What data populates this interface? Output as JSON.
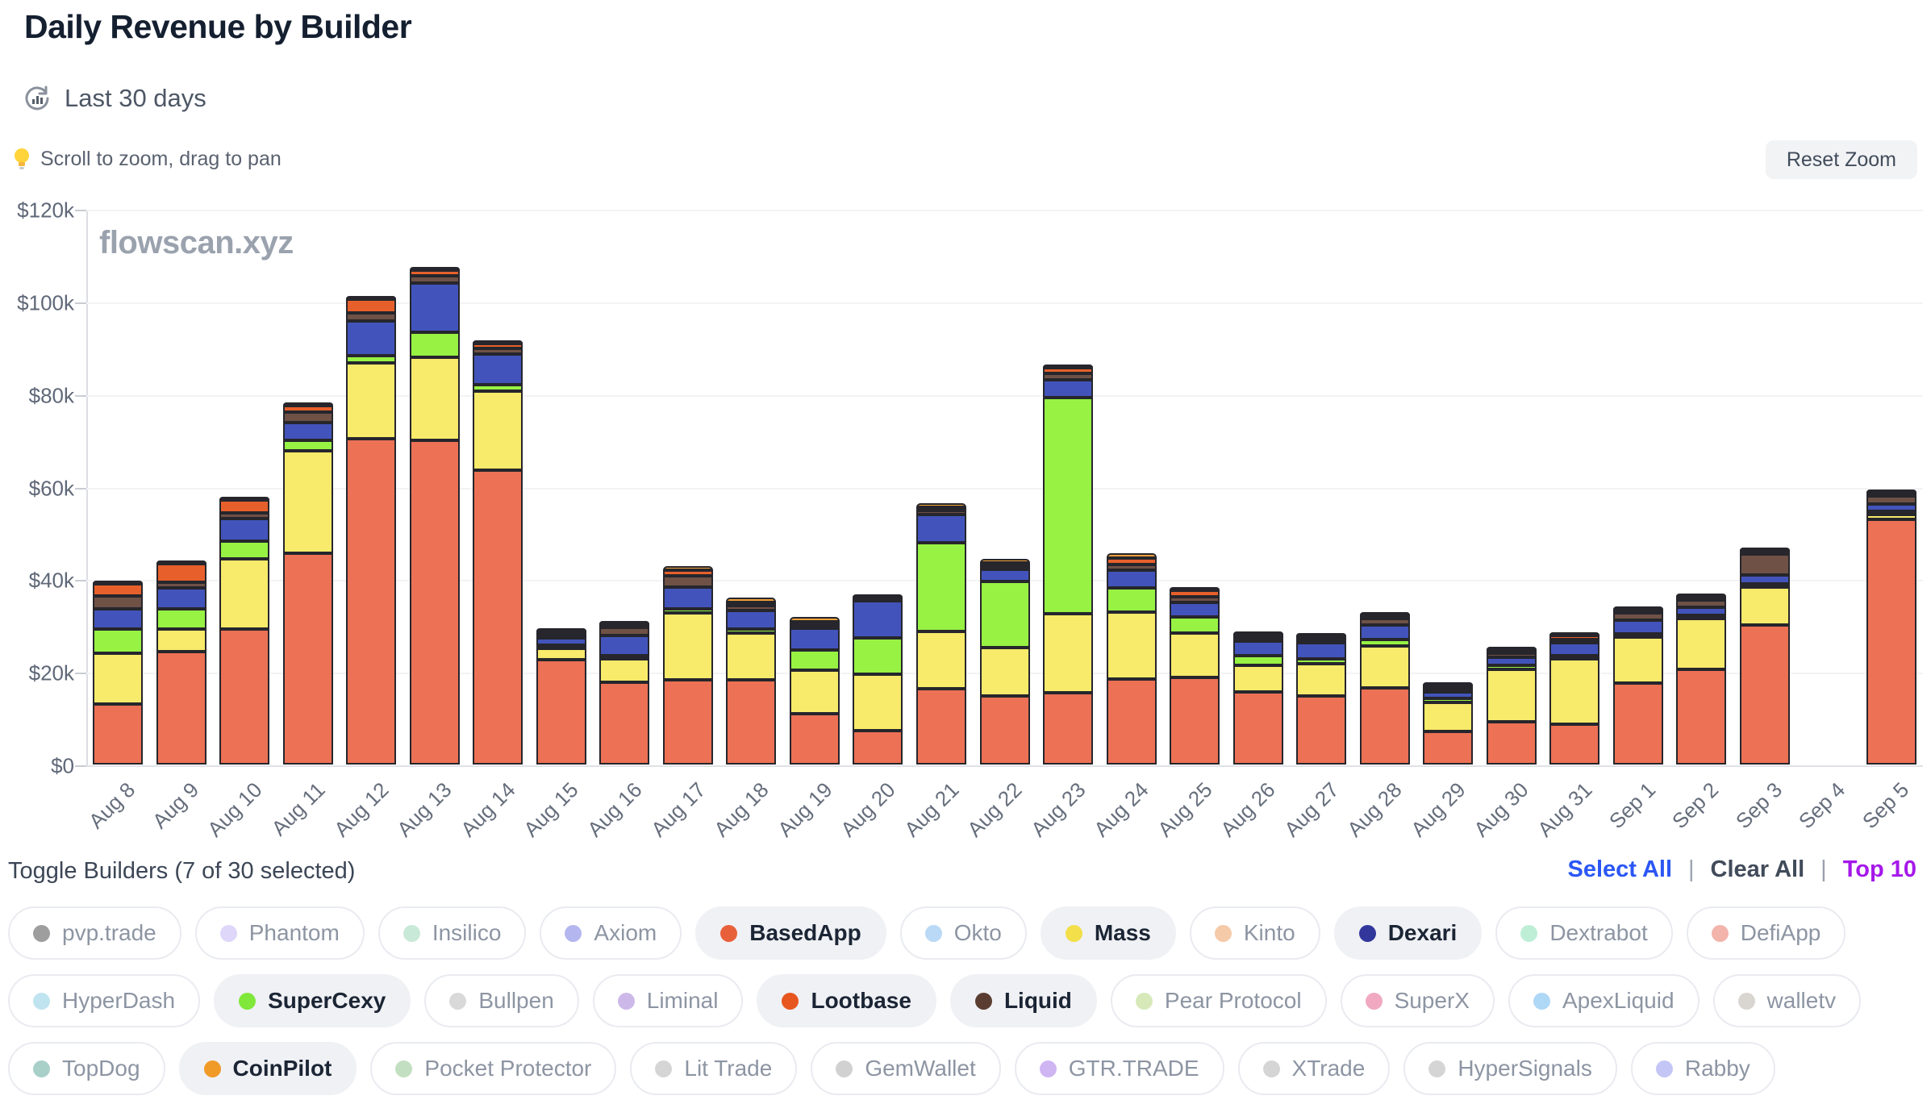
{
  "header": {
    "title": "Daily Revenue by Builder",
    "range_label": "Last 30 days",
    "tip": "Scroll to zoom, drag to pan",
    "reset_zoom_label": "Reset Zoom"
  },
  "watermark": "flowscan.xyz",
  "chart_data": {
    "type": "bar",
    "stacked": true,
    "title": "Daily Revenue by Builder",
    "xlabel": "",
    "ylabel": "",
    "ylim": [
      0,
      120000
    ],
    "grid": true,
    "legend_position": "none",
    "yticks": [
      {
        "value": 0,
        "label": "$0"
      },
      {
        "value": 20000,
        "label": "$20k"
      },
      {
        "value": 40000,
        "label": "$40k"
      },
      {
        "value": 60000,
        "label": "$60k"
      },
      {
        "value": 80000,
        "label": "$80k"
      },
      {
        "value": 100000,
        "label": "$100k"
      },
      {
        "value": 120000,
        "label": "$120k"
      }
    ],
    "categories": [
      "Aug 8",
      "Aug 9",
      "Aug 10",
      "Aug 11",
      "Aug 12",
      "Aug 13",
      "Aug 14",
      "Aug 15",
      "Aug 16",
      "Aug 17",
      "Aug 18",
      "Aug 19",
      "Aug 20",
      "Aug 21",
      "Aug 22",
      "Aug 23",
      "Aug 24",
      "Aug 25",
      "Aug 26",
      "Aug 27",
      "Aug 28",
      "Aug 29",
      "Aug 30",
      "Aug 31",
      "Sep 1",
      "Sep 2",
      "Sep 3",
      "Sep 4",
      "Sep 5"
    ],
    "series": [
      {
        "name": "BasedApp",
        "color": "#ec7155",
        "values": [
          13000,
          24400,
          29300,
          45700,
          70300,
          70000,
          63500,
          22700,
          17800,
          18300,
          18300,
          11000,
          7300,
          16300,
          14800,
          15500,
          18500,
          18800,
          15700,
          14800,
          16600,
          7200,
          9200,
          8700,
          17600,
          20500,
          30200,
          0,
          53000
        ]
      },
      {
        "name": "Mass",
        "color": "#f8ea6a",
        "values": [
          11000,
          4900,
          15200,
          22000,
          16500,
          18000,
          17100,
          2300,
          5000,
          14500,
          10100,
          9400,
          12200,
          12400,
          10500,
          17100,
          14500,
          9600,
          5800,
          7000,
          9000,
          6300,
          11300,
          14100,
          9900,
          11000,
          8200,
          0,
          1000
        ]
      },
      {
        "name": "SuperCexy",
        "color": "#97f243",
        "values": [
          5200,
          4400,
          3800,
          2400,
          1500,
          5400,
          1400,
          300,
          700,
          900,
          900,
          4400,
          7800,
          19200,
          14300,
          46600,
          5200,
          3500,
          2100,
          1000,
          1400,
          700,
          900,
          800,
          500,
          700,
          600,
          0,
          700
        ]
      },
      {
        "name": "Dexari",
        "color": "#4254bb",
        "values": [
          4500,
          4400,
          4900,
          3700,
          7500,
          10500,
          6600,
          1600,
          4400,
          4700,
          4000,
          4600,
          8000,
          6100,
          2600,
          3800,
          3800,
          3100,
          3000,
          3500,
          3200,
          1500,
          1700,
          2700,
          2900,
          1800,
          1900,
          0,
          1500
        ]
      },
      {
        "name": "Liquid",
        "color": "#6f5146",
        "values": [
          2700,
          1200,
          1200,
          2400,
          1700,
          1700,
          1200,
          300,
          1700,
          2300,
          1000,
          300,
          600,
          800,
          500,
          1500,
          1200,
          1200,
          600,
          400,
          1300,
          300,
          1000,
          500,
          1700,
          1600,
          4500,
          0,
          1800
        ]
      },
      {
        "name": "Lootbase",
        "color": "#e7602b",
        "values": [
          2700,
          4000,
          2800,
          1400,
          3000,
          1200,
          1200,
          400,
          200,
          1200,
          600,
          400,
          300,
          300,
          300,
          1200,
          1400,
          1400,
          700,
          200,
          300,
          300,
          200,
          800,
          400,
          500,
          500,
          0,
          300
        ]
      },
      {
        "name": "CoinPilot",
        "color": "#f2a237",
        "values": [
          400,
          300,
          400,
          400,
          700,
          700,
          700,
          100,
          100,
          1000,
          1000,
          1000,
          0,
          900,
          800,
          300,
          1000,
          200,
          200,
          100,
          200,
          100,
          100,
          200,
          200,
          200,
          300,
          0,
          200
        ]
      }
    ]
  },
  "toggles": {
    "header": "Toggle Builders (7 of 30 selected)",
    "separator": "|",
    "actions": [
      {
        "label": "Select All",
        "color": "#2b57f5"
      },
      {
        "label": "Clear All",
        "color": "#414b5a"
      },
      {
        "label": "Top 10",
        "color": "#a518ea"
      }
    ],
    "rows": [
      [
        {
          "label": "pvp.trade",
          "dot": "#9e9e9e",
          "selected": false
        },
        {
          "label": "Phantom",
          "dot": "#ded7f9",
          "selected": false
        },
        {
          "label": "Insilico",
          "dot": "#c9e9d8",
          "selected": false
        },
        {
          "label": "Axiom",
          "dot": "#b4b7ef",
          "selected": false
        },
        {
          "label": "BasedApp",
          "dot": "#e8603a",
          "selected": true
        },
        {
          "label": "Okto",
          "dot": "#b9d9f6",
          "selected": false
        },
        {
          "label": "Mass",
          "dot": "#f2df49",
          "selected": true
        },
        {
          "label": "Kinto",
          "dot": "#f5caa9",
          "selected": false
        },
        {
          "label": "Dexari",
          "dot": "#32379c",
          "selected": true
        },
        {
          "label": "Dextrabot",
          "dot": "#bfeed7",
          "selected": false
        },
        {
          "label": "DefiApp",
          "dot": "#f3b4ac",
          "selected": false
        }
      ],
      [
        {
          "label": "HyperDash",
          "dot": "#c0e4ef",
          "selected": false
        },
        {
          "label": "SuperCexy",
          "dot": "#7fe83a",
          "selected": true
        },
        {
          "label": "Bullpen",
          "dot": "#d9d9d9",
          "selected": false
        },
        {
          "label": "Liminal",
          "dot": "#cdb9e9",
          "selected": false
        },
        {
          "label": "Lootbase",
          "dot": "#e8561f",
          "selected": true
        },
        {
          "label": "Liquid",
          "dot": "#5a3d30",
          "selected": true
        },
        {
          "label": "Pear Protocol",
          "dot": "#d7e9b9",
          "selected": false
        },
        {
          "label": "SuperX",
          "dot": "#f0a9c1",
          "selected": false
        },
        {
          "label": "ApexLiquid",
          "dot": "#afd7f6",
          "selected": false
        },
        {
          "label": "walletv",
          "dot": "#d9d6d1",
          "selected": false
        }
      ],
      [
        {
          "label": "TopDog",
          "dot": "#a9cfc9",
          "selected": false
        },
        {
          "label": "CoinPilot",
          "dot": "#f09a28",
          "selected": true
        },
        {
          "label": "Pocket Protector",
          "dot": "#c3dfc1",
          "selected": false
        },
        {
          "label": "Lit Trade",
          "dot": "#d5d5d5",
          "selected": false
        },
        {
          "label": "GemWallet",
          "dot": "#d1d1d1",
          "selected": false
        },
        {
          "label": "GTR.TRADE",
          "dot": "#d0b5f3",
          "selected": false
        },
        {
          "label": "XTrade",
          "dot": "#d5d5d5",
          "selected": false
        },
        {
          "label": "HyperSignals",
          "dot": "#d5d5d5",
          "selected": false
        },
        {
          "label": "Rabby",
          "dot": "#c4c6f6",
          "selected": false
        }
      ]
    ]
  }
}
